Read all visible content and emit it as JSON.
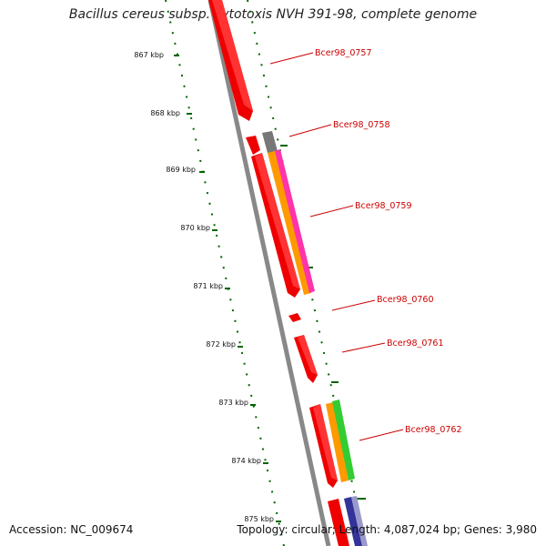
{
  "title": "Bacillus cereus subsp. cytotoxis NVH 391-98, complete genome",
  "footer": {
    "accession": "Accession: NC_009674",
    "topology": "Topology: circular; Length: 4,087,024 bp; Genes: 3,980"
  },
  "kbp_ticks": [
    "867 kbp",
    "868 kbp",
    "869 kbp",
    "870 kbp",
    "871 kbp",
    "872 kbp",
    "873 kbp",
    "874 kbp",
    "875 kbp"
  ],
  "genes": [
    {
      "label": "Bcer98_0757"
    },
    {
      "label": "Bcer98_0758"
    },
    {
      "label": "Bcer98_0759"
    },
    {
      "label": "Bcer98_0760"
    },
    {
      "label": "Bcer98_0761"
    },
    {
      "label": "Bcer98_0762"
    }
  ],
  "colors": {
    "gene": "#ff0000",
    "backbone": "#777777",
    "orange": "#ff9900",
    "pink": "#ff33aa",
    "green": "#33cc33",
    "navy": "#333399",
    "tick_green": "#006600"
  }
}
